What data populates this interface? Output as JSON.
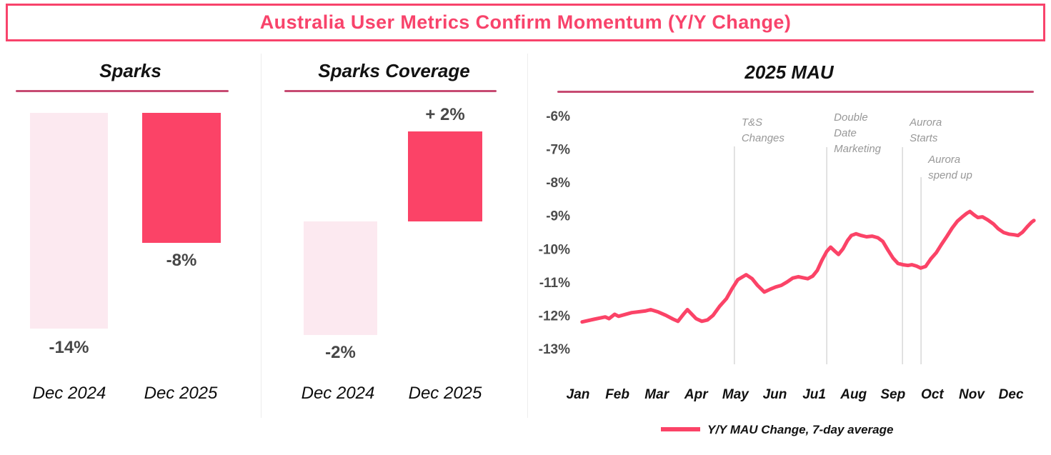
{
  "banner": {
    "title": "Australia User Metrics Confirm Momentum (Y/Y Change)"
  },
  "colors": {
    "accent": "#fb4367",
    "title_pink": "#f8436b",
    "underline_pink": "#c74b72",
    "light_bar_pink": "#fce9f0",
    "annotation_gray": "#989898",
    "axis_label_gray": "#4c4c4c",
    "gridline_gray": "#d8d8d8"
  },
  "panels": {
    "sparks": {
      "title": "Sparks",
      "values": {
        "dec2024": "-14%",
        "dec2025": "-8%"
      },
      "categories": {
        "dec2024": "Dec 2024",
        "dec2025": "Dec 2025"
      }
    },
    "sparks_coverage": {
      "title": "Sparks Coverage",
      "values": {
        "dec2024": "-2%",
        "dec2025": "+ 2%"
      },
      "categories": {
        "dec2024": "Dec 2024",
        "dec2025": "Dec 2025"
      }
    },
    "mau": {
      "title": "2025 MAU",
      "legend": "Y/Y MAU Change, 7-day average"
    }
  },
  "chart_data": [
    {
      "type": "bar",
      "title": "Sparks",
      "categories": [
        "Dec 2024",
        "Dec 2025"
      ],
      "values": [
        -14,
        -8
      ],
      "data_labels": [
        "-14%",
        "-8%"
      ],
      "unit": "percent_yoy_change",
      "highlight": "Dec 2025"
    },
    {
      "type": "bar",
      "title": "Sparks Coverage",
      "categories": [
        "Dec 2024",
        "Dec 2025"
      ],
      "values": [
        -2,
        2
      ],
      "data_labels": [
        "-2%",
        "+ 2%"
      ],
      "unit": "percent_yoy_change",
      "highlight": "Dec 2025"
    },
    {
      "type": "line",
      "title": "2025 MAU",
      "xlabel": "",
      "ylabel": "",
      "x_ticks": [
        "Jan",
        "Feb",
        "Mar",
        "Apr",
        "May",
        "Jun",
        "Ju1",
        "Aug",
        "Sep",
        "Oct",
        "Nov",
        "Dec"
      ],
      "y_ticks": [
        {
          "label": "-6%",
          "value": -6
        },
        {
          "label": "-7%",
          "value": -7
        },
        {
          "label": "-8%",
          "value": -8
        },
        {
          "label": "-9%",
          "value": -9
        },
        {
          "label": "-10%",
          "value": -10
        },
        {
          "label": "-11%",
          "value": -11
        },
        {
          "label": "-12%",
          "value": -12
        },
        {
          "label": "-13%",
          "value": -13
        }
      ],
      "ylim": [
        -13,
        -6
      ],
      "grid": "vertical-annotation-lines-only",
      "legend_position": "bottom-center",
      "series": [
        {
          "name": "Y/Y MAU Change, 7-day average",
          "points": [
            [
              0.09,
              -12.2
            ],
            [
              0.4,
              -12.12
            ],
            [
              0.7,
              -12.05
            ],
            [
              0.8,
              -12.1
            ],
            [
              0.95,
              -11.97
            ],
            [
              1.05,
              -12.03
            ],
            [
              1.4,
              -11.92
            ],
            [
              1.75,
              -11.87
            ],
            [
              1.9,
              -11.83
            ],
            [
              2.1,
              -11.9
            ],
            [
              2.3,
              -12.0
            ],
            [
              2.5,
              -12.12
            ],
            [
              2.62,
              -12.18
            ],
            [
              2.78,
              -11.95
            ],
            [
              2.87,
              -11.83
            ],
            [
              3.1,
              -12.1
            ],
            [
              3.25,
              -12.18
            ],
            [
              3.4,
              -12.14
            ],
            [
              3.55,
              -12.0
            ],
            [
              3.72,
              -11.73
            ],
            [
              3.9,
              -11.5
            ],
            [
              4.05,
              -11.2
            ],
            [
              4.2,
              -10.93
            ],
            [
              4.42,
              -10.78
            ],
            [
              4.58,
              -10.9
            ],
            [
              4.72,
              -11.1
            ],
            [
              4.9,
              -11.3
            ],
            [
              5.05,
              -11.22
            ],
            [
              5.2,
              -11.15
            ],
            [
              5.35,
              -11.1
            ],
            [
              5.5,
              -11.0
            ],
            [
              5.65,
              -10.88
            ],
            [
              5.8,
              -10.84
            ],
            [
              5.92,
              -10.87
            ],
            [
              6.05,
              -10.9
            ],
            [
              6.18,
              -10.82
            ],
            [
              6.3,
              -10.65
            ],
            [
              6.42,
              -10.35
            ],
            [
              6.55,
              -10.08
            ],
            [
              6.65,
              -9.95
            ],
            [
              6.76,
              -10.07
            ],
            [
              6.86,
              -10.17
            ],
            [
              6.98,
              -10.0
            ],
            [
              7.1,
              -9.75
            ],
            [
              7.2,
              -9.6
            ],
            [
              7.32,
              -9.55
            ],
            [
              7.46,
              -9.6
            ],
            [
              7.6,
              -9.64
            ],
            [
              7.75,
              -9.62
            ],
            [
              7.9,
              -9.67
            ],
            [
              8.03,
              -9.78
            ],
            [
              8.16,
              -10.03
            ],
            [
              8.3,
              -10.28
            ],
            [
              8.43,
              -10.44
            ],
            [
              8.56,
              -10.48
            ],
            [
              8.7,
              -10.5
            ],
            [
              8.8,
              -10.48
            ],
            [
              8.92,
              -10.52
            ],
            [
              9.03,
              -10.58
            ],
            [
              9.16,
              -10.53
            ],
            [
              9.3,
              -10.3
            ],
            [
              9.44,
              -10.12
            ],
            [
              9.58,
              -9.87
            ],
            [
              9.72,
              -9.63
            ],
            [
              9.86,
              -9.38
            ],
            [
              10.0,
              -9.17
            ],
            [
              10.13,
              -9.04
            ],
            [
              10.25,
              -8.93
            ],
            [
              10.33,
              -8.88
            ],
            [
              10.44,
              -8.98
            ],
            [
              10.54,
              -9.06
            ],
            [
              10.66,
              -9.04
            ],
            [
              10.8,
              -9.13
            ],
            [
              10.95,
              -9.25
            ],
            [
              11.08,
              -9.4
            ],
            [
              11.22,
              -9.51
            ],
            [
              11.36,
              -9.56
            ],
            [
              11.5,
              -9.58
            ],
            [
              11.6,
              -9.6
            ],
            [
              11.72,
              -9.5
            ],
            [
              11.85,
              -9.33
            ],
            [
              11.96,
              -9.2
            ],
            [
              12.02,
              -9.15
            ]
          ]
        }
      ],
      "annotations": [
        {
          "label": "T&S Changes",
          "lines": [
            "T&S",
            "Changes"
          ],
          "x_month": 4.11
        },
        {
          "label": "Double Date Marketing",
          "lines": [
            "Double",
            "Date",
            "Marketing"
          ],
          "x_month": 6.55
        },
        {
          "label": "Aurora Starts",
          "lines": [
            "Aurora",
            "Starts"
          ],
          "x_month": 8.55
        },
        {
          "label": "Aurora spend up",
          "lines": [
            "Aurora",
            "spend up"
          ],
          "x_month": 9.04
        }
      ]
    }
  ]
}
